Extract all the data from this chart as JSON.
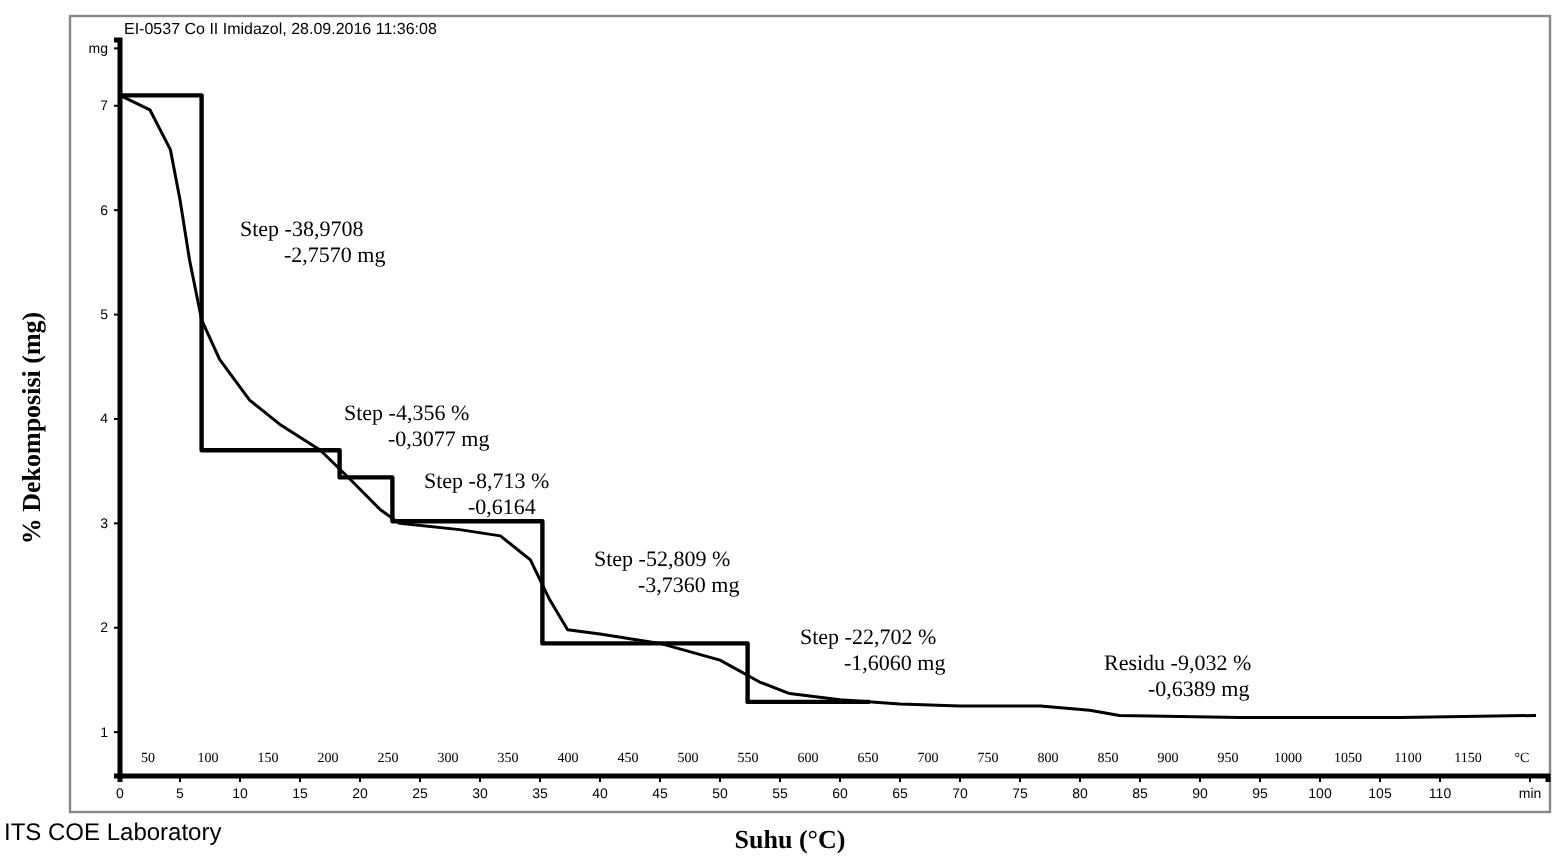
{
  "chart_data": {
    "type": "line",
    "title": "EI-0537 Co II Imidazol, 28.09.2016 11:36:08",
    "xlabel": "Suhu (°C)",
    "ylabel": "% Dekomposisi (mg)",
    "xlim": [
      0,
      119
    ],
    "xticks": [
      0,
      5,
      10,
      15,
      20,
      25,
      30,
      35,
      40,
      45,
      50,
      55,
      60,
      65,
      70,
      75,
      80,
      85,
      90,
      95,
      100,
      105,
      110,
      {
        "value": 117.5,
        "label": "min"
      }
    ],
    "x2lim": [
      26.7,
      1216.7
    ],
    "x2ticks": [
      50,
      100,
      150,
      200,
      250,
      300,
      350,
      400,
      450,
      500,
      550,
      600,
      650,
      700,
      750,
      800,
      850,
      900,
      950,
      1000,
      1050,
      1100,
      1150,
      {
        "value": 1195,
        "label": "°C"
      }
    ],
    "ylim": [
      0.58,
      7.63
    ],
    "yticks": [
      1,
      2,
      3,
      4,
      5,
      6,
      7,
      {
        "value": 7.55,
        "label": "mg"
      }
    ],
    "grid": false,
    "series": [
      {
        "color": "#000000",
        "x": [
          0,
          2.5,
          4.2,
          5,
          5.8,
          6.8,
          8.3,
          10.8,
          13.3,
          16.7,
          19.2,
          21.7,
          23.3,
          28.3,
          31.7,
          34.2,
          35.8,
          37.3,
          40,
          45,
          50,
          53.3,
          55.8,
          60,
          65,
          70,
          76.7,
          80.8,
          83.3,
          93.3,
          106.7,
          118
        ],
        "values": [
          7.1,
          6.96,
          6.58,
          6.1,
          5.52,
          4.95,
          4.57,
          4.18,
          3.95,
          3.7,
          3.42,
          3.13,
          3.0,
          2.94,
          2.88,
          2.65,
          2.27,
          1.98,
          1.94,
          1.85,
          1.69,
          1.48,
          1.37,
          1.31,
          1.27,
          1.25,
          1.25,
          1.21,
          1.16,
          1.14,
          1.14,
          1.16
        ]
      },
      {
        "type": "step",
        "color": "#000000",
        "x": [
          0,
          6.8,
          18.3,
          22.7,
          35.2,
          52.3,
          62.5
        ],
        "values": [
          7.1,
          3.7,
          3.44,
          3.02,
          1.85,
          1.29,
          1.29
        ]
      }
    ],
    "annotations": [
      "Step -38,9708\n-2,7570 mg",
      "Step -4,356 %\n-0,3077 mg",
      "Step -8,713 %\n-0,6164",
      "Step -52,809 %\n-3,7360 mg",
      "Step -22,702 %\n-1,6060 mg",
      "Residu -9,032 %\n-0,6389 mg",
      "ITS COE Laboratory"
    ]
  }
}
